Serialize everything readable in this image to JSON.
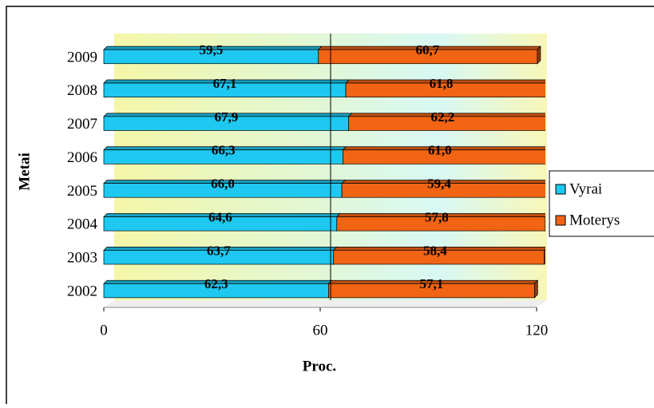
{
  "chart_data": {
    "type": "stacked-bar-horizontal",
    "x_label": "Proc.",
    "y_label": "Metai",
    "categories": [
      "2002",
      "2003",
      "2004",
      "2005",
      "2006",
      "2007",
      "2008",
      "2009"
    ],
    "series": [
      {
        "name": "Vyrai",
        "color": "#1ec8f0",
        "values": [
          62.3,
          63.7,
          64.6,
          66.0,
          66.3,
          67.9,
          67.1,
          59.5
        ],
        "value_labels": [
          "62,3",
          "63,7",
          "64,6",
          "66,0",
          "66,3",
          "67,9",
          "67,1",
          "59,5"
        ]
      },
      {
        "name": "Moterys",
        "color": "#f06414",
        "values": [
          57.1,
          58.4,
          57.8,
          59.4,
          61.0,
          62.2,
          61.8,
          60.7
        ],
        "value_labels": [
          "57,1",
          "58,4",
          "57,8",
          "59,4",
          "61,0",
          "62,2",
          "61,8",
          "60,7"
        ]
      }
    ],
    "xlim": [
      0,
      120
    ],
    "xticks": [
      0,
      60,
      120
    ],
    "grid": true,
    "legend": "right"
  }
}
